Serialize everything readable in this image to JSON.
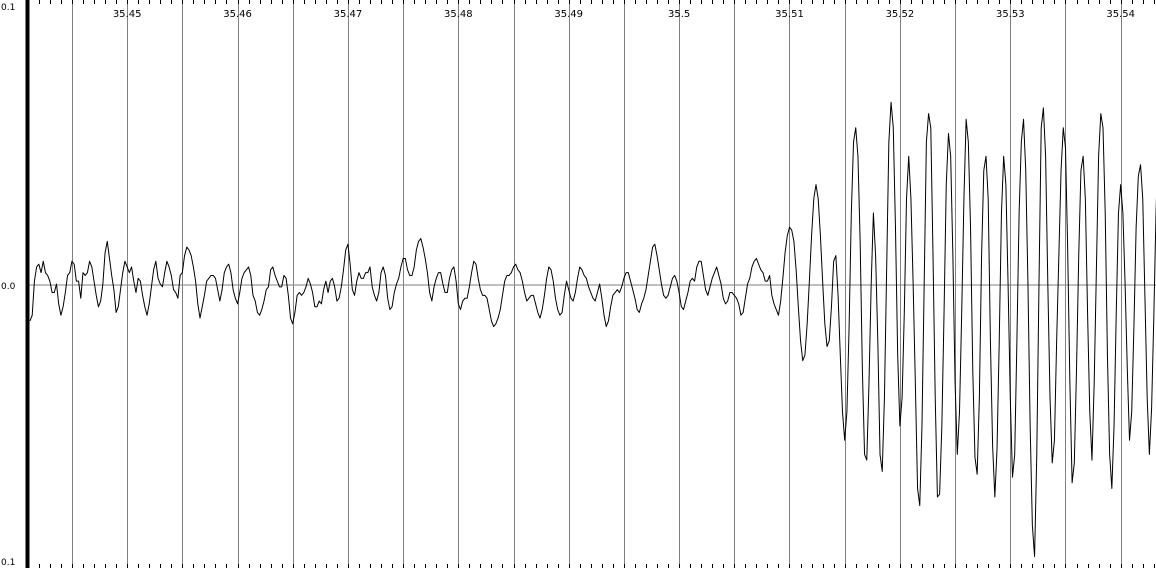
{
  "chart_data": {
    "type": "line",
    "title": "",
    "xlabel": "",
    "ylabel": "",
    "xlim": [
      35.4412,
      35.5432
    ],
    "ylim": [
      -0.1,
      0.1
    ],
    "x_ticks": [
      "35.45",
      "35.46",
      "35.47",
      "35.48",
      "35.49",
      "35.5",
      "35.51",
      "35.52",
      "35.53",
      "35.54"
    ],
    "x_tick_values": [
      35.45,
      35.46,
      35.47,
      35.48,
      35.49,
      35.5,
      35.51,
      35.52,
      35.53,
      35.54
    ],
    "y_labels": {
      "top": "0.1",
      "zero": "0.0",
      "bottom": "0.1"
    },
    "grid": true,
    "legend": "none",
    "line_color": "#000000",
    "grid_color": "#808080",
    "series": [
      {
        "sample_interval": 0.0002,
        "values": [
          -0.013,
          -0.011,
          0.001,
          0.006,
          0.007,
          0.004,
          0.008,
          0.004,
          0.003,
          0.001,
          -0.003,
          -0.003,
          0.0,
          -0.007,
          -0.011,
          -0.008,
          -0.003,
          0.003,
          0.004,
          0.008,
          0.007,
          0.001,
          0.001,
          -0.005,
          0.004,
          0.003,
          0.004,
          0.008,
          0.006,
          0.001,
          -0.004,
          -0.008,
          -0.006,
          0.0,
          0.011,
          0.015,
          0.009,
          0.003,
          -0.002,
          -0.01,
          -0.008,
          -0.002,
          0.004,
          0.008,
          0.006,
          0.004,
          0.006,
          0.001,
          -0.003,
          0.002,
          0.001,
          -0.004,
          -0.008,
          -0.011,
          -0.007,
          -0.001,
          0.005,
          0.008,
          0.002,
          0.0,
          -0.001,
          0.004,
          0.008,
          0.006,
          0.003,
          -0.002,
          -0.003,
          -0.005,
          0.003,
          0.004,
          0.01,
          0.013,
          0.012,
          0.01,
          0.006,
          0.001,
          -0.007,
          -0.012,
          -0.008,
          -0.004,
          0.001,
          0.002,
          0.003,
          0.003,
          0.002,
          -0.002,
          -0.006,
          -0.002,
          0.004,
          0.006,
          0.007,
          0.004,
          -0.002,
          -0.005,
          -0.007,
          -0.003,
          0.002,
          0.004,
          0.005,
          0.006,
          0.003,
          -0.004,
          -0.006,
          -0.01,
          -0.011,
          -0.009,
          -0.006,
          -0.002,
          -0.001,
          0.005,
          0.006,
          0.003,
          0.001,
          -0.001,
          -0.001,
          0.003,
          0.002,
          -0.004,
          -0.012,
          -0.014,
          -0.01,
          -0.004,
          -0.003,
          -0.004,
          -0.003,
          -0.001,
          0.002,
          0.0,
          -0.003,
          -0.008,
          -0.008,
          -0.006,
          -0.007,
          -0.002,
          0.001,
          -0.003,
          0.001,
          0.002,
          -0.001,
          -0.006,
          -0.005,
          -0.001,
          0.005,
          0.012,
          0.014,
          0.007,
          -0.002,
          -0.004,
          0.001,
          0.004,
          0.002,
          0.002,
          0.004,
          0.004,
          0.006,
          -0.001,
          -0.004,
          -0.006,
          -0.003,
          0.004,
          0.006,
          0.003,
          -0.005,
          -0.009,
          -0.008,
          -0.003,
          0.0,
          0.002,
          0.006,
          0.009,
          0.009,
          0.005,
          0.003,
          0.003,
          0.006,
          0.012,
          0.015,
          0.016,
          0.013,
          0.009,
          0.004,
          -0.003,
          -0.006,
          -0.001,
          0.002,
          0.004,
          0.004,
          0.0,
          -0.003,
          -0.003,
          0.002,
          0.005,
          0.006,
          0.001,
          -0.007,
          -0.009,
          -0.006,
          -0.005,
          -0.005,
          -0.001,
          0.004,
          0.008,
          0.007,
          0.002,
          -0.002,
          -0.004,
          -0.004,
          -0.005,
          -0.009,
          -0.013,
          -0.015,
          -0.014,
          -0.012,
          -0.009,
          -0.004,
          0.001,
          0.003,
          0.003,
          0.004,
          0.006,
          0.007,
          0.005,
          0.004,
          0.001,
          -0.003,
          -0.006,
          -0.005,
          -0.004,
          -0.004,
          -0.007,
          -0.01,
          -0.012,
          -0.009,
          -0.004,
          0.002,
          0.006,
          0.005,
          0.001,
          -0.005,
          -0.009,
          -0.011,
          -0.01,
          -0.004,
          0.001,
          -0.002,
          -0.005,
          -0.006,
          -0.003,
          0.002,
          0.006,
          0.005,
          0.003,
          0.002,
          -0.001,
          -0.003,
          -0.005,
          -0.006,
          -0.003,
          0.0,
          -0.005,
          -0.011,
          -0.015,
          -0.013,
          -0.008,
          -0.004,
          -0.003,
          -0.002,
          -0.003,
          -0.001,
          0.002,
          0.004,
          0.004,
          0.001,
          -0.002,
          -0.005,
          -0.009,
          -0.01,
          -0.007,
          -0.005,
          -0.002,
          0.003,
          0.008,
          0.013,
          0.014,
          0.01,
          0.005,
          0.0,
          -0.004,
          -0.005,
          -0.004,
          -0.001,
          0.002,
          0.003,
          0.001,
          -0.003,
          -0.008,
          -0.009,
          -0.006,
          -0.003,
          0.001,
          0.002,
          0.001,
          0.006,
          0.008,
          0.008,
          0.003,
          -0.002,
          -0.004,
          -0.001,
          0.002,
          0.004,
          0.006,
          0.003,
          0.0,
          -0.005,
          -0.007,
          -0.006,
          -0.003,
          -0.003,
          -0.004,
          -0.005,
          -0.007,
          -0.011,
          -0.01,
          -0.005,
          0.0,
          0.002,
          0.006,
          0.008,
          0.009,
          0.007,
          0.005,
          0.004,
          0.001,
          0.001,
          0.003,
          -0.004,
          -0.007,
          -0.009,
          -0.011,
          -0.006,
          0.002,
          0.011,
          0.017,
          0.02,
          0.019,
          0.015,
          0.005,
          -0.008,
          -0.02,
          -0.027,
          -0.025,
          -0.014,
          0.001,
          0.017,
          0.03,
          0.035,
          0.03,
          0.017,
          0.001,
          -0.014,
          -0.022,
          -0.02,
          -0.008,
          0.008,
          0.01,
          -0.004,
          -0.025,
          -0.045,
          -0.055,
          -0.045,
          -0.015,
          0.025,
          0.05,
          0.055,
          0.045,
          0.015,
          -0.03,
          -0.06,
          -0.062,
          -0.035,
          0.0,
          0.025,
          0.01,
          -0.02,
          -0.06,
          -0.066,
          -0.04,
          0.005,
          0.05,
          0.064,
          0.055,
          0.02,
          -0.025,
          -0.05,
          -0.04,
          -0.01,
          0.03,
          0.045,
          0.03,
          0.0,
          -0.035,
          -0.072,
          -0.078,
          -0.05,
          0.0,
          0.05,
          0.06,
          0.055,
          0.01,
          -0.04,
          -0.075,
          -0.074,
          -0.05,
          -0.01,
          0.035,
          0.053,
          0.045,
          0.01,
          -0.035,
          -0.06,
          -0.045,
          -0.01,
          0.03,
          0.058,
          0.05,
          0.02,
          -0.03,
          -0.061,
          -0.067,
          -0.04,
          0.01,
          0.04,
          0.045,
          0.03,
          -0.02,
          -0.057,
          -0.075,
          -0.058,
          -0.02,
          0.025,
          0.045,
          0.035,
          0.0,
          -0.04,
          -0.068,
          -0.06,
          -0.02,
          0.025,
          0.05,
          0.058,
          0.04,
          0.0,
          -0.05,
          -0.085,
          -0.096,
          -0.06,
          0.0,
          0.055,
          0.062,
          0.045,
          0.0,
          -0.04,
          -0.063,
          -0.055,
          -0.02,
          0.01,
          0.04,
          0.055,
          0.048,
          0.012,
          -0.035,
          -0.07,
          -0.063,
          -0.03,
          0.01,
          0.04,
          0.045,
          0.03,
          -0.01,
          -0.045,
          -0.062,
          -0.035,
          0.005,
          0.045,
          0.06,
          0.055,
          0.025,
          -0.025,
          -0.06,
          -0.072,
          -0.05,
          -0.01,
          0.025,
          0.035,
          0.025,
          0.0,
          -0.03,
          -0.055,
          -0.045,
          -0.015,
          0.02,
          0.038,
          0.042,
          0.03,
          -0.005,
          -0.04,
          -0.06,
          -0.044,
          -0.012,
          0.025,
          0.05,
          0.058,
          0.042,
          0.005,
          -0.04,
          -0.08,
          -0.064,
          -0.03,
          0.01,
          0.045,
          0.06,
          0.045,
          0.01,
          -0.03,
          -0.061,
          -0.065,
          -0.045,
          -0.01,
          0.025,
          0.05,
          0.058,
          0.045,
          0.012,
          -0.025,
          -0.052,
          -0.048,
          -0.015,
          0.028,
          0.055,
          0.05,
          0.02,
          -0.02,
          -0.052,
          -0.065,
          -0.045
        ]
      }
    ]
  }
}
